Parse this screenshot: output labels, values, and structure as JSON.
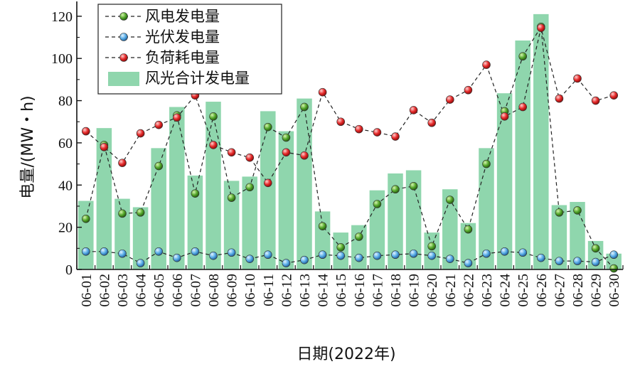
{
  "chart_data": {
    "type": "bar",
    "categories": [
      "06-01",
      "06-02",
      "06-03",
      "06-04",
      "06-05",
      "06-06",
      "06-07",
      "06-08",
      "06-09",
      "06-10",
      "06-11",
      "06-12",
      "06-13",
      "06-14",
      "06-15",
      "06-16",
      "06-17",
      "06-18",
      "06-19",
      "06-20",
      "06-21",
      "06-22",
      "06-23",
      "06-24",
      "06-25",
      "06-26",
      "06-27",
      "06-28",
      "06-29",
      "06-30"
    ],
    "series": [
      {
        "name": "风光合计发电量",
        "kind": "bar",
        "color": "#8fd6ad",
        "values": [
          32.5,
          67,
          33.5,
          29.5,
          57.5,
          77,
          44.5,
          79.5,
          42,
          44,
          75,
          65.5,
          81,
          27.5,
          17.5,
          21,
          37.5,
          45.5,
          47,
          17.5,
          38,
          22,
          57.5,
          83.5,
          108.5,
          121,
          30.5,
          32,
          13.5,
          7.5
        ]
      },
      {
        "name": "风电发电量",
        "kind": "line",
        "color": "#3d8a1f",
        "values": [
          24,
          59,
          26.5,
          27,
          49,
          73,
          36,
          72.5,
          34,
          39,
          67.5,
          62.5,
          77,
          20.5,
          10.5,
          15.5,
          31,
          38,
          39.5,
          11,
          33,
          19,
          50,
          75,
          101,
          115,
          27,
          28,
          10,
          0.5
        ]
      },
      {
        "name": "光伏发电量",
        "kind": "line",
        "color": "#4a9fe0",
        "values": [
          8.5,
          8.5,
          7.5,
          3,
          8.5,
          5.5,
          8.5,
          6.5,
          8,
          5,
          7,
          3,
          4.5,
          7,
          6.5,
          5.5,
          6.5,
          7,
          7.5,
          6.5,
          5,
          3,
          7.5,
          8.5,
          8,
          5.5,
          4,
          4,
          3.5,
          7
        ]
      },
      {
        "name": "负荷耗电量",
        "kind": "line",
        "color": "#e0202a",
        "values": [
          65.5,
          58,
          50.5,
          64.5,
          68.5,
          72,
          82.5,
          59,
          55.5,
          53,
          41,
          55.5,
          54,
          84,
          70,
          66.5,
          65,
          63,
          75.5,
          69.5,
          80.5,
          85,
          97,
          72.5,
          77,
          114.5,
          81,
          90.5,
          80,
          82.5
        ]
      }
    ],
    "xlabel": "日期(2022年)",
    "ylabel": "电量/(MW・h)",
    "ylim": [
      0,
      125
    ],
    "yticks": [
      0,
      20,
      40,
      60,
      80,
      100,
      120
    ],
    "grid": false,
    "legend": "top-left",
    "legend_order": [
      "风电发电量",
      "光伏发电量",
      "负荷耗电量",
      "风光合计发电量"
    ]
  }
}
